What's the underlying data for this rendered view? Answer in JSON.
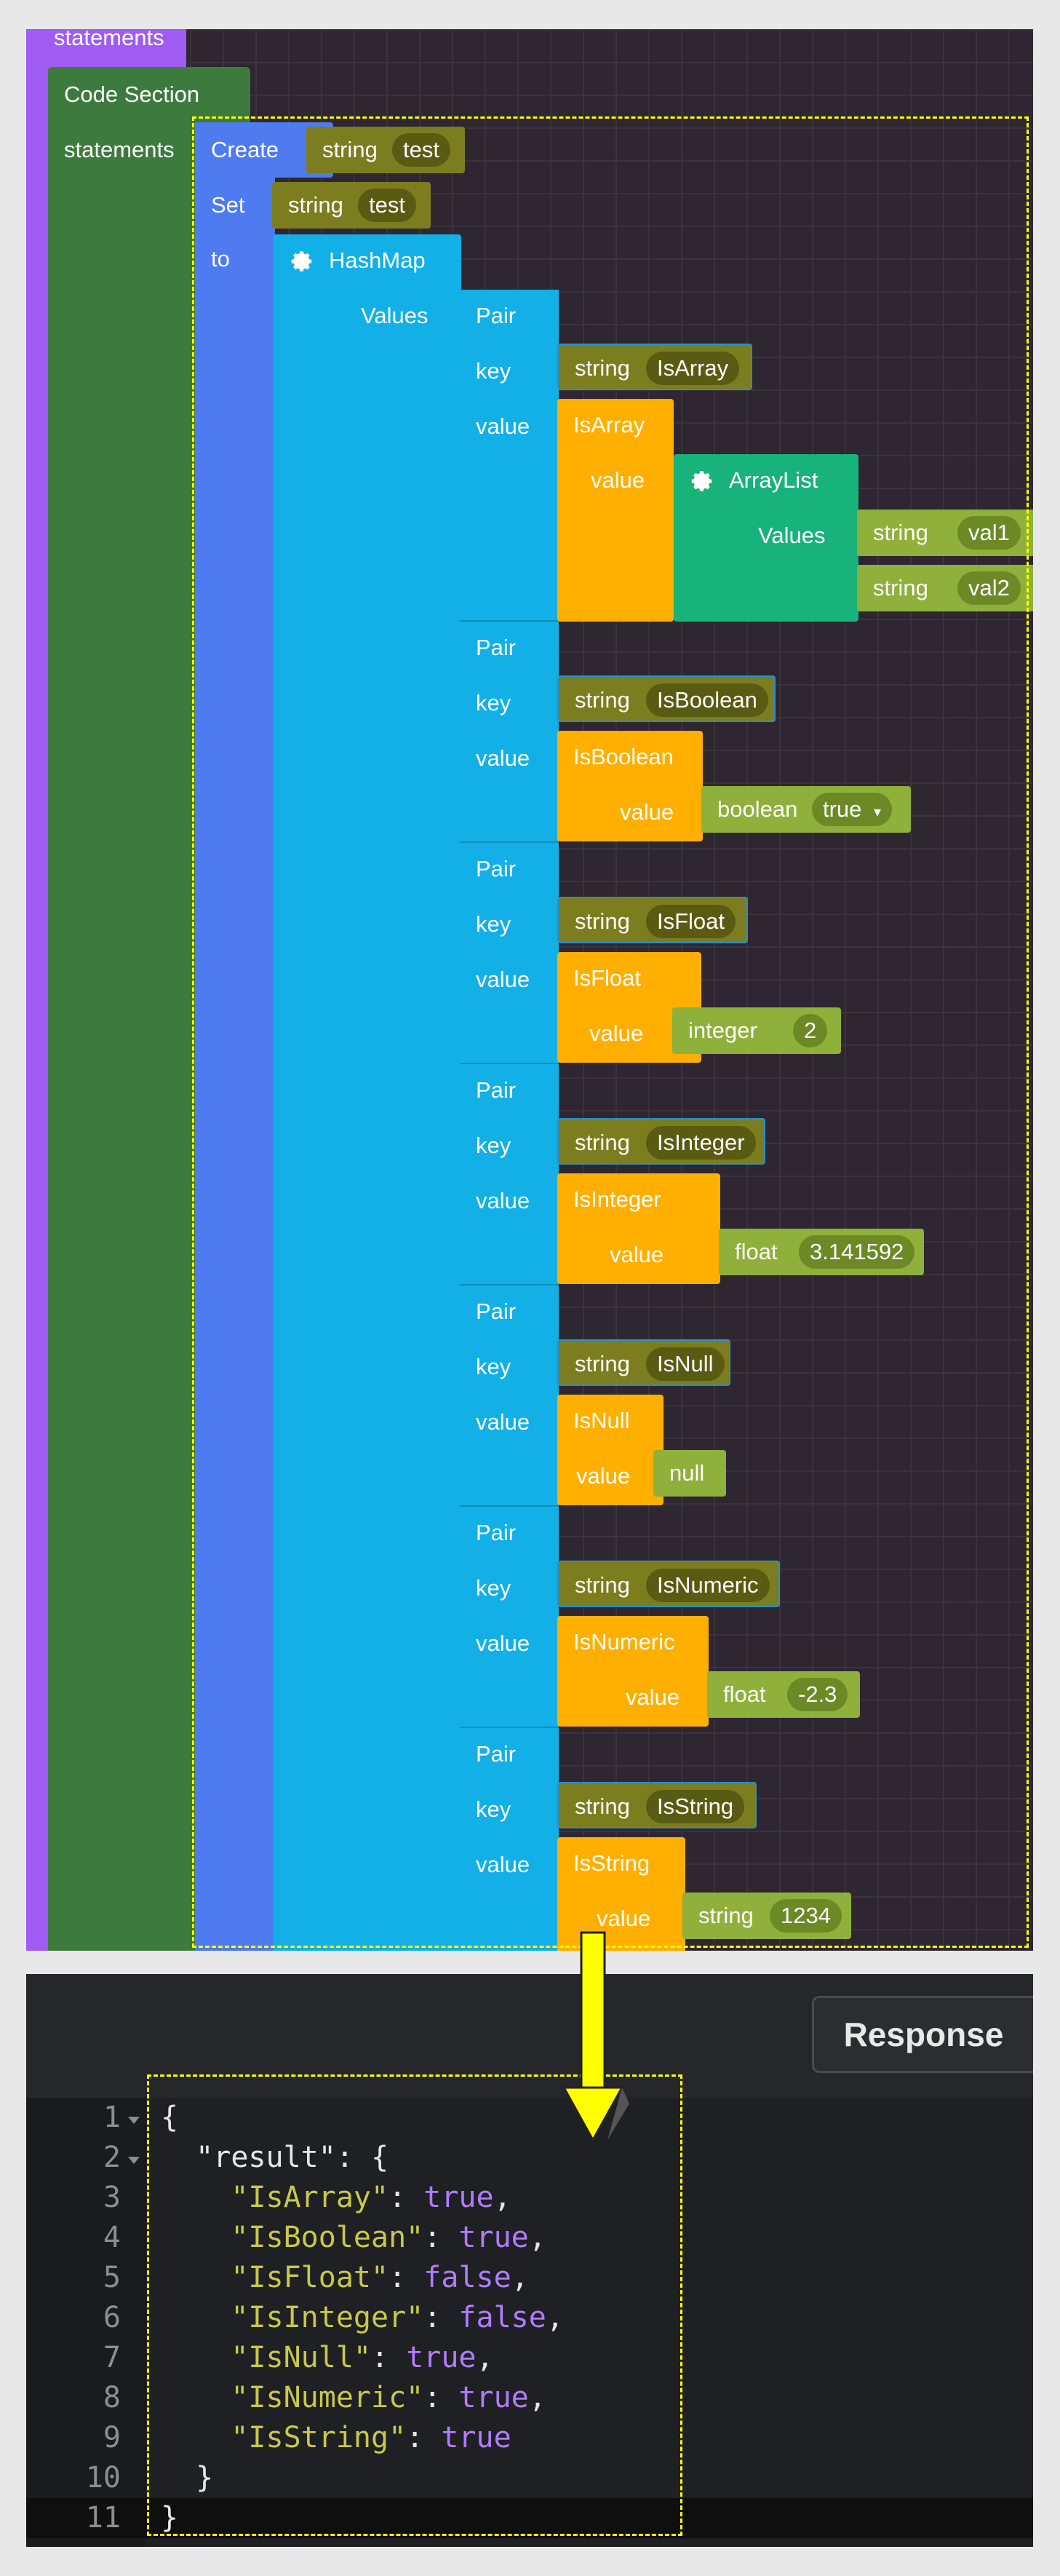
{
  "workspace": {
    "statements_top": "statements",
    "code_section": "Code Section",
    "statements": "statements",
    "create_label": "Create",
    "create_type": "string",
    "create_value": "test",
    "set_label": "Set",
    "set_type": "string",
    "set_value": "test",
    "to_label": "to",
    "hashmap_label": "HashMap",
    "values_label": "Values",
    "pair_label": "Pair",
    "key_label": "key",
    "value_label": "value",
    "pairs": [
      {
        "key_type": "string",
        "key": "IsArray",
        "check": "IsArray",
        "value_block": "ArrayList",
        "values_label": "Values",
        "items": [
          {
            "type": "string",
            "value": "val1"
          },
          {
            "type": "string",
            "value": "val2"
          }
        ]
      },
      {
        "key_type": "string",
        "key": "IsBoolean",
        "check": "IsBoolean",
        "value_type": "boolean",
        "value": "true",
        "dropdown": "▾"
      },
      {
        "key_type": "string",
        "key": "IsFloat",
        "check": "IsFloat",
        "value_type": "integer",
        "value": "2"
      },
      {
        "key_type": "string",
        "key": "IsInteger",
        "check": "IsInteger",
        "value_type": "float",
        "value": "3.141592"
      },
      {
        "key_type": "string",
        "key": "IsNull",
        "check": "IsNull",
        "value_type": "null"
      },
      {
        "key_type": "string",
        "key": "IsNumeric",
        "check": "IsNumeric",
        "value_type": "float",
        "value": "-2.3"
      },
      {
        "key_type": "string",
        "key": "IsString",
        "check": "IsString",
        "value_type": "string",
        "value": "1234"
      }
    ],
    "colors": {
      "purple": "#a05cf2",
      "green": "#3d7a3d",
      "blue": "#4f7bf0",
      "cyan": "#12b0e6",
      "orange": "#ffaf00",
      "teal": "#17b37a",
      "olive": "#7c7d1e",
      "lime": "#8fb03a",
      "highlight": "#ffff00"
    }
  },
  "response": {
    "button_label": "Response",
    "line_numbers": [
      "1",
      "2",
      "3",
      "4",
      "5",
      "6",
      "7",
      "8",
      "9",
      "10",
      "11"
    ],
    "lines": [
      {
        "text": "{"
      },
      {
        "text": "  \"result\": {"
      },
      {
        "key": "    \"IsArray\"",
        "sep": ": ",
        "val": "true",
        "end": ","
      },
      {
        "key": "    \"IsBoolean\"",
        "sep": ": ",
        "val": "true",
        "end": ","
      },
      {
        "key": "    \"IsFloat\"",
        "sep": ": ",
        "val": "false",
        "end": ","
      },
      {
        "key": "    \"IsInteger\"",
        "sep": ": ",
        "val": "false",
        "end": ","
      },
      {
        "key": "    \"IsNull\"",
        "sep": ": ",
        "val": "true",
        "end": ","
      },
      {
        "key": "    \"IsNumeric\"",
        "sep": ": ",
        "val": "true",
        "end": ","
      },
      {
        "key": "    \"IsString\"",
        "sep": ": ",
        "val": "true",
        "end": ""
      },
      {
        "text": "  }"
      },
      {
        "text": "}"
      }
    ]
  }
}
